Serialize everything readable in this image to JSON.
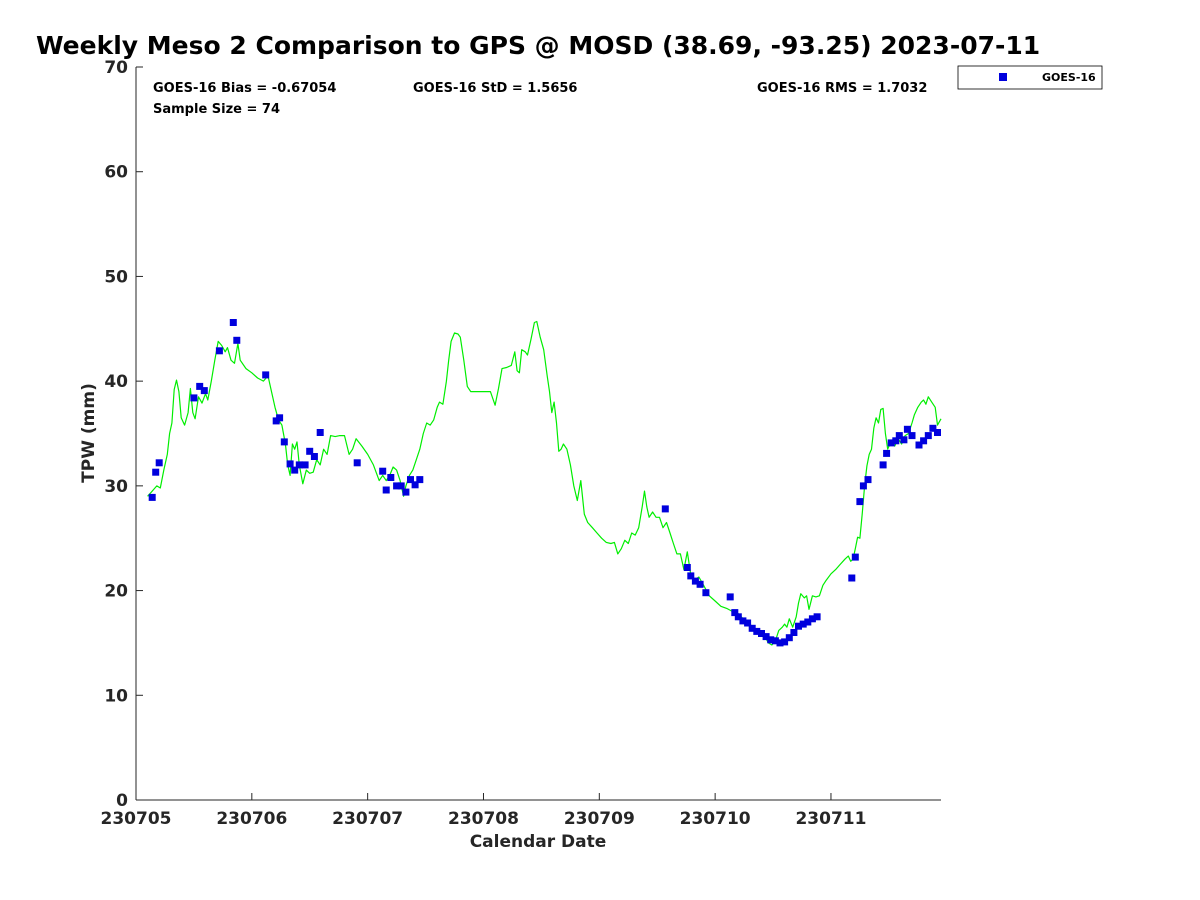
{
  "chart_data": {
    "type": "scatter",
    "title": "Weekly Meso 2 Comparison to GPS @ MOSD (38.69, -93.25) 2023-07-11",
    "xlabel": "Calendar Date",
    "ylabel": "TPW (mm)",
    "xlim": [
      0,
      6.95
    ],
    "ylim": [
      0,
      70
    ],
    "x_ticks": [
      {
        "value": 0,
        "label": "230705"
      },
      {
        "value": 1,
        "label": "230706"
      },
      {
        "value": 2,
        "label": "230707"
      },
      {
        "value": 3,
        "label": "230708"
      },
      {
        "value": 4,
        "label": "230709"
      },
      {
        "value": 5,
        "label": "230710"
      },
      {
        "value": 6,
        "label": "230711"
      }
    ],
    "y_ticks": [
      0,
      10,
      20,
      30,
      40,
      50,
      60,
      70
    ],
    "grid": false,
    "legend_position": "top-right",
    "stats": {
      "bias": "GOES-16 Bias = -0.67054",
      "std": "GOES-16 StD = 1.5656",
      "rms": "GOES-16 RMS = 1.7032",
      "sample": "Sample Size = 74"
    },
    "colors": {
      "goes": "#0000dd",
      "gps": "#00ee00"
    },
    "series": [
      {
        "name": "GOES-16",
        "kind": "scatter",
        "points": [
          [
            0.14,
            28.9
          ],
          [
            0.17,
            31.3
          ],
          [
            0.2,
            32.2
          ],
          [
            0.5,
            38.4
          ],
          [
            0.55,
            39.5
          ],
          [
            0.59,
            39.1
          ],
          [
            0.72,
            42.9
          ],
          [
            0.84,
            45.6
          ],
          [
            0.87,
            43.9
          ],
          [
            1.12,
            40.6
          ],
          [
            1.21,
            36.2
          ],
          [
            1.24,
            36.5
          ],
          [
            1.28,
            34.2
          ],
          [
            1.33,
            32.1
          ],
          [
            1.37,
            31.5
          ],
          [
            1.41,
            32.0
          ],
          [
            1.46,
            32.0
          ],
          [
            1.5,
            33.3
          ],
          [
            1.54,
            32.8
          ],
          [
            1.59,
            35.1
          ],
          [
            1.91,
            32.2
          ],
          [
            2.13,
            31.4
          ],
          [
            2.16,
            29.6
          ],
          [
            2.2,
            30.8
          ],
          [
            2.25,
            30.0
          ],
          [
            2.29,
            30.0
          ],
          [
            2.33,
            29.4
          ],
          [
            2.37,
            30.6
          ],
          [
            2.41,
            30.1
          ],
          [
            2.45,
            30.6
          ],
          [
            4.57,
            27.8
          ],
          [
            4.76,
            22.2
          ],
          [
            4.79,
            21.4
          ],
          [
            4.83,
            20.9
          ],
          [
            4.87,
            20.6
          ],
          [
            4.92,
            19.8
          ],
          [
            5.13,
            19.4
          ],
          [
            5.17,
            17.9
          ],
          [
            5.2,
            17.5
          ],
          [
            5.24,
            17.1
          ],
          [
            5.28,
            16.9
          ],
          [
            5.32,
            16.4
          ],
          [
            5.36,
            16.1
          ],
          [
            5.4,
            15.9
          ],
          [
            5.44,
            15.6
          ],
          [
            5.48,
            15.3
          ],
          [
            5.52,
            15.2
          ],
          [
            5.56,
            15.0
          ],
          [
            5.6,
            15.1
          ],
          [
            5.64,
            15.5
          ],
          [
            5.68,
            16.0
          ],
          [
            5.72,
            16.6
          ],
          [
            5.76,
            16.8
          ],
          [
            5.8,
            17.0
          ],
          [
            5.84,
            17.3
          ],
          [
            5.88,
            17.5
          ],
          [
            6.18,
            21.2
          ],
          [
            6.21,
            23.2
          ],
          [
            6.25,
            28.5
          ],
          [
            6.28,
            30.0
          ],
          [
            6.32,
            30.6
          ],
          [
            6.45,
            32.0
          ],
          [
            6.48,
            33.1
          ],
          [
            6.52,
            34.1
          ],
          [
            6.56,
            34.3
          ],
          [
            6.59,
            34.8
          ],
          [
            6.63,
            34.4
          ],
          [
            6.66,
            35.4
          ],
          [
            6.7,
            34.8
          ],
          [
            6.76,
            33.9
          ],
          [
            6.8,
            34.3
          ],
          [
            6.84,
            34.8
          ],
          [
            6.88,
            35.5
          ],
          [
            6.92,
            35.1
          ]
        ]
      },
      {
        "name": "GPS",
        "kind": "line",
        "points": [
          [
            0.1,
            29.0
          ],
          [
            0.14,
            29.5
          ],
          [
            0.18,
            30.0
          ],
          [
            0.21,
            29.8
          ],
          [
            0.24,
            31.5
          ],
          [
            0.27,
            33.0
          ],
          [
            0.29,
            35.0
          ],
          [
            0.31,
            36.0
          ],
          [
            0.33,
            39.2
          ],
          [
            0.35,
            40.1
          ],
          [
            0.37,
            39.0
          ],
          [
            0.39,
            36.5
          ],
          [
            0.42,
            35.8
          ],
          [
            0.45,
            37.0
          ],
          [
            0.47,
            39.3
          ],
          [
            0.49,
            37.0
          ],
          [
            0.51,
            36.4
          ],
          [
            0.54,
            38.5
          ],
          [
            0.57,
            37.9
          ],
          [
            0.6,
            38.8
          ],
          [
            0.62,
            38.2
          ],
          [
            0.65,
            40.0
          ],
          [
            0.68,
            42.0
          ],
          [
            0.71,
            43.8
          ],
          [
            0.74,
            43.4
          ],
          [
            0.77,
            42.8
          ],
          [
            0.79,
            43.2
          ],
          [
            0.82,
            42.0
          ],
          [
            0.85,
            41.7
          ],
          [
            0.88,
            43.6
          ],
          [
            0.9,
            42.0
          ],
          [
            0.95,
            41.2
          ],
          [
            1.0,
            40.8
          ],
          [
            1.05,
            40.3
          ],
          [
            1.1,
            40.0
          ],
          [
            1.14,
            40.5
          ],
          [
            1.17,
            39.0
          ],
          [
            1.2,
            37.5
          ],
          [
            1.23,
            36.3
          ],
          [
            1.26,
            35.8
          ],
          [
            1.29,
            34.0
          ],
          [
            1.31,
            32.0
          ],
          [
            1.33,
            31.0
          ],
          [
            1.35,
            34.0
          ],
          [
            1.37,
            33.5
          ],
          [
            1.39,
            34.2
          ],
          [
            1.41,
            32.0
          ],
          [
            1.44,
            30.2
          ],
          [
            1.47,
            31.5
          ],
          [
            1.5,
            31.2
          ],
          [
            1.53,
            31.3
          ],
          [
            1.56,
            32.5
          ],
          [
            1.59,
            32.0
          ],
          [
            1.62,
            33.5
          ],
          [
            1.65,
            33.0
          ],
          [
            1.68,
            34.8
          ],
          [
            1.72,
            34.7
          ],
          [
            1.76,
            34.8
          ],
          [
            1.8,
            34.8
          ],
          [
            1.84,
            33.0
          ],
          [
            1.87,
            33.5
          ],
          [
            1.9,
            34.5
          ],
          [
            1.95,
            33.8
          ],
          [
            2.0,
            33.0
          ],
          [
            2.05,
            32.0
          ],
          [
            2.1,
            30.5
          ],
          [
            2.13,
            31.0
          ],
          [
            2.16,
            30.5
          ],
          [
            2.19,
            31.0
          ],
          [
            2.22,
            31.8
          ],
          [
            2.25,
            31.5
          ],
          [
            2.28,
            30.5
          ],
          [
            2.31,
            29.0
          ],
          [
            2.33,
            30.0
          ],
          [
            2.36,
            31.0
          ],
          [
            2.39,
            31.5
          ],
          [
            2.42,
            32.5
          ],
          [
            2.45,
            33.5
          ],
          [
            2.48,
            35.0
          ],
          [
            2.51,
            36.0
          ],
          [
            2.54,
            35.8
          ],
          [
            2.57,
            36.3
          ],
          [
            2.6,
            37.5
          ],
          [
            2.62,
            38.0
          ],
          [
            2.65,
            37.8
          ],
          [
            2.68,
            40.0
          ],
          [
            2.7,
            42.0
          ],
          [
            2.72,
            43.8
          ],
          [
            2.75,
            44.6
          ],
          [
            2.78,
            44.5
          ],
          [
            2.8,
            44.2
          ],
          [
            2.83,
            42.0
          ],
          [
            2.86,
            39.5
          ],
          [
            2.89,
            39.0
          ],
          [
            2.94,
            39.0
          ],
          [
            3.0,
            39.0
          ],
          [
            3.06,
            39.0
          ],
          [
            3.1,
            37.7
          ],
          [
            3.13,
            39.3
          ],
          [
            3.16,
            41.2
          ],
          [
            3.2,
            41.3
          ],
          [
            3.24,
            41.5
          ],
          [
            3.27,
            42.8
          ],
          [
            3.29,
            41.0
          ],
          [
            3.31,
            40.8
          ],
          [
            3.33,
            43.0
          ],
          [
            3.36,
            42.8
          ],
          [
            3.38,
            42.5
          ],
          [
            3.41,
            44.0
          ],
          [
            3.44,
            45.6
          ],
          [
            3.46,
            45.7
          ],
          [
            3.49,
            44.2
          ],
          [
            3.52,
            43.0
          ],
          [
            3.55,
            40.5
          ],
          [
            3.57,
            39.0
          ],
          [
            3.59,
            37.0
          ],
          [
            3.61,
            38.0
          ],
          [
            3.63,
            36.0
          ],
          [
            3.65,
            33.3
          ],
          [
            3.67,
            33.5
          ],
          [
            3.69,
            34.0
          ],
          [
            3.72,
            33.5
          ],
          [
            3.75,
            32.0
          ],
          [
            3.78,
            30.0
          ],
          [
            3.81,
            28.6
          ],
          [
            3.84,
            30.5
          ],
          [
            3.87,
            27.3
          ],
          [
            3.9,
            26.5
          ],
          [
            3.94,
            26.0
          ],
          [
            3.98,
            25.5
          ],
          [
            4.02,
            25.0
          ],
          [
            4.06,
            24.6
          ],
          [
            4.1,
            24.5
          ],
          [
            4.13,
            24.6
          ],
          [
            4.16,
            23.5
          ],
          [
            4.19,
            24.0
          ],
          [
            4.22,
            24.8
          ],
          [
            4.25,
            24.5
          ],
          [
            4.28,
            25.5
          ],
          [
            4.31,
            25.3
          ],
          [
            4.34,
            26.0
          ],
          [
            4.37,
            28.0
          ],
          [
            4.39,
            29.5
          ],
          [
            4.41,
            28.0
          ],
          [
            4.43,
            27.0
          ],
          [
            4.46,
            27.5
          ],
          [
            4.49,
            27.0
          ],
          [
            4.52,
            27.0
          ],
          [
            4.55,
            26.0
          ],
          [
            4.58,
            26.5
          ],
          [
            4.61,
            25.5
          ],
          [
            4.64,
            24.5
          ],
          [
            4.67,
            23.5
          ],
          [
            4.7,
            23.5
          ],
          [
            4.73,
            22.0
          ],
          [
            4.76,
            23.7
          ],
          [
            4.79,
            21.5
          ],
          [
            4.82,
            21.0
          ],
          [
            4.86,
            21.3
          ],
          [
            4.9,
            20.5
          ],
          [
            4.95,
            19.5
          ],
          [
            5.0,
            19.0
          ],
          [
            5.05,
            18.5
          ],
          [
            5.1,
            18.3
          ],
          [
            5.15,
            18.0
          ],
          [
            5.2,
            17.8
          ],
          [
            5.25,
            17.2
          ],
          [
            5.3,
            16.8
          ],
          [
            5.35,
            16.2
          ],
          [
            5.4,
            15.8
          ],
          [
            5.43,
            15.6
          ],
          [
            5.46,
            15.0
          ],
          [
            5.49,
            14.8
          ],
          [
            5.52,
            15.2
          ],
          [
            5.55,
            16.2
          ],
          [
            5.58,
            16.5
          ],
          [
            5.6,
            16.8
          ],
          [
            5.62,
            16.5
          ],
          [
            5.64,
            17.3
          ],
          [
            5.67,
            16.5
          ],
          [
            5.7,
            17.5
          ],
          [
            5.72,
            18.8
          ],
          [
            5.74,
            19.7
          ],
          [
            5.77,
            19.3
          ],
          [
            5.79,
            19.5
          ],
          [
            5.81,
            18.2
          ],
          [
            5.84,
            19.5
          ],
          [
            5.87,
            19.4
          ],
          [
            5.9,
            19.5
          ],
          [
            5.93,
            20.5
          ],
          [
            5.96,
            21.0
          ],
          [
            6.0,
            21.6
          ],
          [
            6.04,
            22.0
          ],
          [
            6.08,
            22.5
          ],
          [
            6.12,
            23.0
          ],
          [
            6.15,
            23.3
          ],
          [
            6.17,
            22.8
          ],
          [
            6.19,
            23.0
          ],
          [
            6.21,
            24.0
          ],
          [
            6.23,
            25.1
          ],
          [
            6.25,
            25.0
          ],
          [
            6.27,
            27.3
          ],
          [
            6.29,
            30.0
          ],
          [
            6.31,
            31.9
          ],
          [
            6.33,
            33.0
          ],
          [
            6.35,
            33.5
          ],
          [
            6.37,
            35.5
          ],
          [
            6.39,
            36.5
          ],
          [
            6.41,
            36.0
          ],
          [
            6.43,
            37.3
          ],
          [
            6.45,
            37.4
          ],
          [
            6.47,
            35.0
          ],
          [
            6.49,
            33.5
          ],
          [
            6.52,
            34.3
          ],
          [
            6.55,
            33.8
          ],
          [
            6.58,
            34.5
          ],
          [
            6.61,
            34.0
          ],
          [
            6.64,
            34.8
          ],
          [
            6.67,
            35.0
          ],
          [
            6.7,
            36.0
          ],
          [
            6.72,
            36.8
          ],
          [
            6.75,
            37.5
          ],
          [
            6.78,
            38.0
          ],
          [
            6.8,
            38.2
          ],
          [
            6.82,
            37.8
          ],
          [
            6.84,
            38.5
          ],
          [
            6.87,
            38.0
          ],
          [
            6.9,
            37.5
          ],
          [
            6.92,
            35.8
          ],
          [
            6.95,
            36.4
          ]
        ]
      }
    ]
  }
}
